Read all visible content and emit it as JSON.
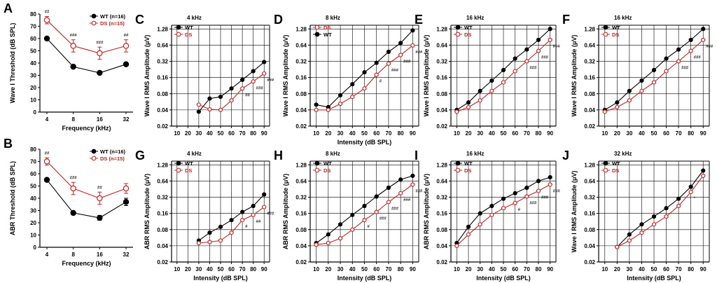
{
  "figure": {
    "panels": [
      "A",
      "B",
      "C",
      "D",
      "E",
      "F",
      "G",
      "H",
      "I",
      "J"
    ]
  },
  "colors": {
    "wt": "#000000",
    "ds": "#cc2222",
    "axis": "#000000",
    "grid": "#000000"
  },
  "chart_data": [
    {
      "id": "A",
      "type": "line",
      "letter": "A",
      "title": "",
      "xlabel": "Frequency (kHz)",
      "ylabel": "Wave I Threshold (dB SPL)",
      "xscale": "category",
      "categories": [
        "4",
        "8",
        "16",
        "32"
      ],
      "yscale": "linear",
      "ylim": [
        0,
        80
      ],
      "yticks": [
        0,
        10,
        20,
        30,
        40,
        50,
        60,
        70,
        80
      ],
      "ytick_labels": [
        "0",
        "10",
        "20",
        "30",
        "40",
        "50",
        "60",
        "70",
        "80"
      ],
      "grid": false,
      "legend_position": "top-right",
      "series": [
        {
          "name": "WT (n=16)",
          "values": [
            60,
            37,
            32,
            39
          ],
          "err": [
            1,
            1,
            1,
            1
          ],
          "marker": "filled"
        },
        {
          "name": "DS (n=15)",
          "values": [
            75,
            54,
            48,
            54
          ],
          "err": [
            3,
            5,
            5,
            5
          ],
          "marker": "open",
          "annotations": [
            "##",
            "###",
            "###",
            "##"
          ]
        }
      ]
    },
    {
      "id": "B",
      "type": "line",
      "letter": "B",
      "title": "",
      "xlabel": "Frequency (kHz)",
      "ylabel": "ABR Threshold (dB SPL)",
      "xscale": "category",
      "categories": [
        "4",
        "8",
        "16",
        "32"
      ],
      "yscale": "linear",
      "ylim": [
        0,
        80
      ],
      "yticks": [
        0,
        10,
        20,
        30,
        40,
        50,
        60,
        70,
        80
      ],
      "ytick_labels": [
        "0",
        "10",
        "20",
        "30",
        "40",
        "50",
        "60",
        "70",
        "80"
      ],
      "grid": false,
      "legend_position": "top-right",
      "series": [
        {
          "name": "WT (n=16)",
          "values": [
            55,
            28,
            24,
            37
          ],
          "err": [
            1,
            1,
            2,
            3
          ],
          "marker": "filled"
        },
        {
          "name": "DS (n=15)",
          "values": [
            70,
            48,
            40,
            48
          ],
          "err": [
            3,
            5,
            5,
            4
          ],
          "marker": "open",
          "annotations": [
            "##",
            "###",
            "##",
            ""
          ]
        }
      ]
    },
    {
      "id": "C",
      "type": "line",
      "letter": "C",
      "title": "4 kHz",
      "xlabel": "",
      "ylabel": "Wave I RMS Amplitude (μV)",
      "xscale": "linear",
      "x": [
        30,
        40,
        50,
        60,
        70,
        80,
        90
      ],
      "xlim": [
        5,
        95
      ],
      "xticks": [
        10,
        20,
        30,
        40,
        50,
        60,
        70,
        80,
        90
      ],
      "yscale": "log2",
      "ylim": [
        0.02,
        1.5
      ],
      "yticks": [
        0.02,
        0.04,
        0.08,
        0.16,
        0.32,
        0.64,
        1.28
      ],
      "ytick_labels": [
        "0.02",
        "0.04",
        "0.08",
        "0.16",
        "0.32",
        "0.64",
        "1.28"
      ],
      "grid": true,
      "legend_position": "top-left",
      "series": [
        {
          "name": "WT",
          "values": [
            0.037,
            0.065,
            0.07,
            0.1,
            0.145,
            0.21,
            0.31
          ],
          "marker": "filled"
        },
        {
          "name": "DS",
          "values": [
            0.05,
            0.041,
            0.04,
            0.06,
            0.1,
            0.135,
            0.19
          ],
          "marker": "open",
          "annotations": [
            "",
            "",
            "",
            "",
            "##",
            "###",
            "###"
          ]
        }
      ]
    },
    {
      "id": "D",
      "type": "line",
      "letter": "D",
      "title": "8 kHz",
      "xlabel": "Intensity (dB SPL)",
      "ylabel": "Wave I RMS Amplitude (μV)",
      "xscale": "linear",
      "x": [
        10,
        20,
        30,
        40,
        50,
        60,
        70,
        80,
        90
      ],
      "xlim": [
        5,
        95
      ],
      "xticks": [
        10,
        20,
        30,
        40,
        50,
        60,
        70,
        80,
        90
      ],
      "yscale": "log2",
      "ylim": [
        0.02,
        1.5
      ],
      "yticks": [
        0.02,
        0.04,
        0.08,
        0.16,
        0.32,
        0.64,
        1.28
      ],
      "ytick_labels": [
        "0.02",
        "0.04",
        "0.08",
        "0.16",
        "0.32",
        "0.64",
        "1.28"
      ],
      "grid": true,
      "legend_position": "top-left",
      "legend_order": [
        "DS",
        "WT"
      ],
      "series": [
        {
          "name": "WT",
          "values": [
            0.05,
            0.045,
            0.075,
            0.12,
            0.2,
            0.3,
            0.48,
            0.7,
            1.2
          ],
          "marker": "filled"
        },
        {
          "name": "DS",
          "values": [
            0.04,
            0.04,
            0.052,
            0.07,
            0.1,
            0.18,
            0.29,
            0.42,
            0.63
          ],
          "marker": "open",
          "annotations": [
            "",
            "",
            "",
            "",
            "",
            "#",
            "###",
            "###",
            "###"
          ]
        }
      ]
    },
    {
      "id": "E",
      "type": "line",
      "letter": "E",
      "title": "16 kHz",
      "xlabel": "",
      "ylabel": "Wave I RMS Amplitude (μV)",
      "xscale": "linear",
      "x": [
        10,
        20,
        30,
        40,
        50,
        60,
        70,
        80,
        90
      ],
      "xlim": [
        5,
        95
      ],
      "xticks": [
        10,
        20,
        30,
        40,
        50,
        60,
        70,
        80,
        90
      ],
      "yscale": "log2",
      "ylim": [
        0.02,
        1.5
      ],
      "yticks": [
        0.02,
        0.04,
        0.08,
        0.16,
        0.32,
        0.64,
        1.28
      ],
      "ytick_labels": [
        "0.02",
        "0.04",
        "0.08",
        "0.16",
        "0.32",
        "0.64",
        "1.28"
      ],
      "grid": true,
      "legend_position": "top-left",
      "series": [
        {
          "name": "WT",
          "values": [
            0.04,
            0.055,
            0.09,
            0.14,
            0.22,
            0.36,
            0.53,
            0.8,
            1.28
          ],
          "marker": "filled"
        },
        {
          "name": "DS",
          "values": [
            0.037,
            0.045,
            0.06,
            0.09,
            0.13,
            0.21,
            0.32,
            0.5,
            0.8
          ],
          "marker": "open",
          "annotations": [
            "",
            "",
            "",
            "",
            "",
            "",
            "###",
            "###",
            "###"
          ]
        }
      ]
    },
    {
      "id": "F",
      "type": "line",
      "letter": "F",
      "title": "16 kHz",
      "xlabel": "",
      "ylabel": "Wave I RMS Amplitude (μV)",
      "xscale": "linear",
      "x": [
        10,
        20,
        30,
        40,
        50,
        60,
        70,
        80,
        90
      ],
      "xlim": [
        5,
        95
      ],
      "xticks": [
        10,
        20,
        30,
        40,
        50,
        60,
        70,
        80,
        90
      ],
      "yscale": "log2",
      "ylim": [
        0.02,
        1.5
      ],
      "yticks": [
        0.02,
        0.04,
        0.08,
        0.16,
        0.32,
        0.64,
        1.28
      ],
      "ytick_labels": [
        "0.02",
        "0.04",
        "0.08",
        "0.16",
        "0.32",
        "0.64",
        "1.28"
      ],
      "grid": true,
      "legend_position": "top-left",
      "series": [
        {
          "name": "WT",
          "values": [
            0.04,
            0.055,
            0.09,
            0.14,
            0.22,
            0.36,
            0.53,
            0.8,
            1.28
          ],
          "marker": "filled"
        },
        {
          "name": "DS",
          "values": [
            0.037,
            0.045,
            0.06,
            0.09,
            0.13,
            0.21,
            0.32,
            0.5,
            0.8
          ],
          "marker": "open",
          "annotations": [
            "",
            "",
            "",
            "",
            "",
            "",
            "###",
            "###",
            "###"
          ]
        }
      ]
    },
    {
      "id": "G",
      "type": "line",
      "letter": "G",
      "title": "4 kHz",
      "xlabel": "Intensity (dB SPL)",
      "ylabel": "ABR RMS Amplitude (μV)",
      "xscale": "linear",
      "x": [
        30,
        40,
        50,
        60,
        70,
        80,
        90
      ],
      "xlim": [
        5,
        95
      ],
      "xticks": [
        10,
        20,
        30,
        40,
        50,
        60,
        70,
        80,
        90
      ],
      "yscale": "log2",
      "ylim": [
        0.02,
        1.5
      ],
      "yticks": [
        0.02,
        0.04,
        0.08,
        0.16,
        0.32,
        0.64,
        1.28
      ],
      "ytick_labels": [
        "0.02",
        "0.04",
        "0.08",
        "0.16",
        "0.32",
        "0.64",
        "1.28"
      ],
      "grid": true,
      "legend_position": "top-left",
      "series": [
        {
          "name": "WT",
          "values": [
            0.05,
            0.07,
            0.09,
            0.12,
            0.17,
            0.22,
            0.36
          ],
          "marker": "filled"
        },
        {
          "name": "DS",
          "values": [
            0.045,
            0.047,
            0.05,
            0.07,
            0.12,
            0.15,
            0.21
          ],
          "marker": "open",
          "annotations": [
            "",
            "",
            "",
            "",
            "#",
            "##",
            "###"
          ]
        }
      ]
    },
    {
      "id": "H",
      "type": "line",
      "letter": "H",
      "title": "8 kHz",
      "xlabel": "Intensity (dB SPL)",
      "ylabel": "ABR RMS Amplitude (μV)",
      "xscale": "linear",
      "x": [
        10,
        20,
        30,
        40,
        50,
        60,
        70,
        80,
        90
      ],
      "xlim": [
        5,
        95
      ],
      "xticks": [
        10,
        20,
        30,
        40,
        50,
        60,
        70,
        80,
        90
      ],
      "yscale": "log2",
      "ylim": [
        0.02,
        1.5
      ],
      "yticks": [
        0.02,
        0.04,
        0.08,
        0.16,
        0.32,
        0.64,
        1.28
      ],
      "ytick_labels": [
        "0.02",
        "0.04",
        "0.08",
        "0.16",
        "0.32",
        "0.64",
        "1.28"
      ],
      "grid": true,
      "legend_position": "top-left",
      "series": [
        {
          "name": "WT",
          "values": [
            0.045,
            0.065,
            0.1,
            0.15,
            0.22,
            0.33,
            0.48,
            0.68,
            0.8
          ],
          "marker": "filled"
        },
        {
          "name": "DS",
          "values": [
            0.042,
            0.045,
            0.055,
            0.08,
            0.12,
            0.17,
            0.26,
            0.38,
            0.55
          ],
          "marker": "open",
          "annotations": [
            "",
            "",
            "",
            "",
            "#",
            "###",
            "###",
            "###",
            "###"
          ]
        }
      ]
    },
    {
      "id": "I",
      "type": "line",
      "letter": "I",
      "title": "16 kHz",
      "xlabel": "Intensity (dB SPL)",
      "ylabel": "ABR RMS Amplitude (μV)",
      "xscale": "linear",
      "x": [
        10,
        20,
        30,
        40,
        50,
        60,
        70,
        80,
        90
      ],
      "xlim": [
        5,
        95
      ],
      "xticks": [
        10,
        20,
        30,
        40,
        50,
        60,
        70,
        80,
        90
      ],
      "yscale": "log2",
      "ylim": [
        0.02,
        1.5
      ],
      "yticks": [
        0.02,
        0.04,
        0.08,
        0.16,
        0.32,
        0.64,
        1.28
      ],
      "ytick_labels": [
        "0.02",
        "0.04",
        "0.08",
        "0.16",
        "0.32",
        "0.64",
        "1.28"
      ],
      "grid": true,
      "legend_position": "top-left",
      "series": [
        {
          "name": "WT",
          "values": [
            0.045,
            0.09,
            0.16,
            0.22,
            0.3,
            0.38,
            0.48,
            0.64,
            0.75
          ],
          "marker": "filled"
        },
        {
          "name": "DS",
          "values": [
            0.04,
            0.065,
            0.1,
            0.15,
            0.2,
            0.25,
            0.33,
            0.42,
            0.55
          ],
          "marker": "open",
          "annotations": [
            "",
            "",
            "",
            "",
            "",
            "#",
            "###",
            "###",
            "###"
          ]
        }
      ]
    },
    {
      "id": "J",
      "type": "line",
      "letter": "J",
      "title": "32 kHz",
      "xlabel": "Intensity (dB SPL)",
      "ylabel": "Wave I RMS Amplitude (μV)",
      "xscale": "linear",
      "x": [
        20,
        30,
        40,
        50,
        60,
        70,
        80,
        90
      ],
      "xlim": [
        5,
        95
      ],
      "xticks": [
        10,
        20,
        30,
        40,
        50,
        60,
        70,
        80,
        90
      ],
      "yscale": "log2",
      "ylim": [
        0.02,
        1.5
      ],
      "yticks": [
        0.02,
        0.04,
        0.08,
        0.16,
        0.32,
        0.64,
        1.28
      ],
      "ytick_labels": [
        "0.02",
        "0.04",
        "0.08",
        "0.16",
        "0.32",
        "0.64",
        "1.28"
      ],
      "grid": true,
      "legend_position": "top-left",
      "series": [
        {
          "name": "WT",
          "values": [
            0.038,
            0.065,
            0.1,
            0.14,
            0.2,
            0.3,
            0.5,
            1.0
          ],
          "marker": "filled"
        },
        {
          "name": "DS",
          "values": [
            0.038,
            0.05,
            0.07,
            0.1,
            0.14,
            0.22,
            0.4,
            0.8
          ],
          "marker": "open",
          "annotations": [
            "",
            "",
            "",
            "",
            "",
            "",
            "*",
            ""
          ]
        }
      ]
    }
  ]
}
